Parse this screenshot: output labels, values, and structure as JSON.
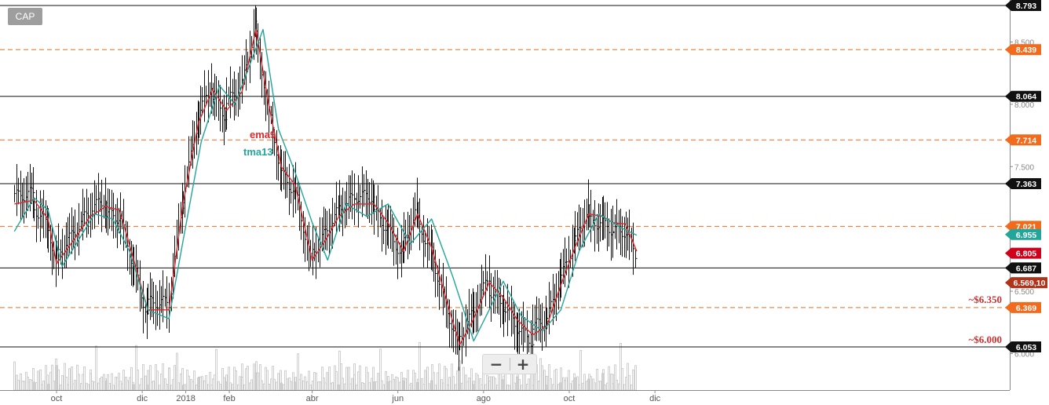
{
  "symbol": "CAP",
  "zoom": {
    "out_label": "−",
    "in_label": "+"
  },
  "colors": {
    "price": "#111111",
    "volume": "#c4c4c4",
    "ema": "#e3262b",
    "tma": "#22a69a",
    "support_line": "#111111",
    "dashed_line": "#f26b1d",
    "target_text": "#d32f2f"
  },
  "chart_data": {
    "type": "line",
    "title": "CAP",
    "ylim": [
      5.85,
      8.85
    ],
    "y_ticks": [
      "8.500",
      "8.000",
      "7.500",
      "6.500",
      "6.000"
    ],
    "x_ticks": [
      "oct",
      "dic",
      "2018",
      "feb",
      "abr",
      "jun",
      "ago",
      "oct",
      "dic"
    ],
    "series": [
      {
        "name": "ema9",
        "values": [
          [
            "2017-09-01",
            7.2
          ],
          [
            "2017-09-15",
            7.23
          ],
          [
            "2017-09-25",
            7.08
          ],
          [
            "2017-10-01",
            6.72
          ],
          [
            "2017-10-10",
            6.86
          ],
          [
            "2017-10-25",
            7.1
          ],
          [
            "2017-11-05",
            7.18
          ],
          [
            "2017-11-15",
            7.15
          ],
          [
            "2017-11-25",
            6.75
          ],
          [
            "2017-12-05",
            6.35
          ],
          [
            "2017-12-20",
            6.35
          ],
          [
            "2017-12-30",
            7.2
          ],
          [
            "2018-01-10",
            7.85
          ],
          [
            "2018-01-20",
            8.12
          ],
          [
            "2018-01-30",
            7.95
          ],
          [
            "2018-02-10",
            8.1
          ],
          [
            "2018-02-20",
            8.6
          ],
          [
            "2018-03-01",
            8.0
          ],
          [
            "2018-03-10",
            7.5
          ],
          [
            "2018-03-20",
            7.35
          ],
          [
            "2018-04-01",
            6.75
          ],
          [
            "2018-04-10",
            6.9
          ],
          [
            "2018-04-20",
            7.1
          ],
          [
            "2018-05-01",
            7.2
          ],
          [
            "2018-05-15",
            7.2
          ],
          [
            "2018-05-25",
            7.05
          ],
          [
            "2018-06-05",
            6.82
          ],
          [
            "2018-06-15",
            7.12
          ],
          [
            "2018-06-25",
            6.85
          ],
          [
            "2018-07-05",
            6.45
          ],
          [
            "2018-07-15",
            6.07
          ],
          [
            "2018-07-25",
            6.28
          ],
          [
            "2018-08-05",
            6.57
          ],
          [
            "2018-08-15",
            6.45
          ],
          [
            "2018-08-25",
            6.27
          ],
          [
            "2018-09-05",
            6.15
          ],
          [
            "2018-09-15",
            6.22
          ],
          [
            "2018-09-25",
            6.55
          ],
          [
            "2018-10-05",
            6.85
          ],
          [
            "2018-10-15",
            7.12
          ],
          [
            "2018-10-25",
            7.1
          ],
          [
            "2018-11-01",
            7.05
          ],
          [
            "2018-11-10",
            7.04
          ],
          [
            "2018-11-18",
            6.82
          ]
        ]
      },
      {
        "name": "tma13",
        "values": [
          [
            "2017-09-01",
            6.98
          ],
          [
            "2017-09-15",
            7.25
          ],
          [
            "2017-09-25",
            7.15
          ],
          [
            "2017-10-05",
            6.7
          ],
          [
            "2017-10-15",
            6.88
          ],
          [
            "2017-10-28",
            7.12
          ],
          [
            "2017-11-10",
            7.08
          ],
          [
            "2017-11-22",
            6.82
          ],
          [
            "2017-12-05",
            6.35
          ],
          [
            "2017-12-20",
            6.28
          ],
          [
            "2017-12-30",
            6.9
          ],
          [
            "2018-01-12",
            7.7
          ],
          [
            "2018-01-25",
            8.15
          ],
          [
            "2018-02-05",
            8.0
          ],
          [
            "2018-02-15",
            8.3
          ],
          [
            "2018-02-25",
            8.6
          ],
          [
            "2018-03-08",
            7.8
          ],
          [
            "2018-03-20",
            7.45
          ],
          [
            "2018-04-01",
            7.05
          ],
          [
            "2018-04-12",
            6.75
          ],
          [
            "2018-04-25",
            7.2
          ],
          [
            "2018-05-10",
            7.1
          ],
          [
            "2018-05-25",
            7.2
          ],
          [
            "2018-06-10",
            6.88
          ],
          [
            "2018-06-25",
            7.08
          ],
          [
            "2018-07-10",
            6.62
          ],
          [
            "2018-07-25",
            6.1
          ],
          [
            "2018-08-05",
            6.35
          ],
          [
            "2018-08-15",
            6.58
          ],
          [
            "2018-08-28",
            6.3
          ],
          [
            "2018-09-12",
            6.18
          ],
          [
            "2018-09-25",
            6.35
          ],
          [
            "2018-10-08",
            6.82
          ],
          [
            "2018-10-22",
            7.12
          ],
          [
            "2018-11-05",
            7.02
          ],
          [
            "2018-11-18",
            6.95
          ]
        ]
      }
    ],
    "series_labels": [
      "ema9",
      "tma13"
    ],
    "horizontal_levels": [
      {
        "label": "8.793",
        "value": 8.793,
        "style": "solid",
        "tag_color": "#111111"
      },
      {
        "label": "8.439",
        "value": 8.439,
        "style": "dashed",
        "tag_color": "#f26b1d"
      },
      {
        "label": "8.064",
        "value": 8.064,
        "style": "solid",
        "tag_color": "#111111"
      },
      {
        "label": "7.714",
        "value": 7.714,
        "style": "dashed",
        "tag_color": "#f26b1d"
      },
      {
        "label": "7.363",
        "value": 7.363,
        "style": "solid",
        "tag_color": "#111111"
      },
      {
        "label": "7.021",
        "value": 7.021,
        "style": "dashed",
        "tag_color": "#f26b1d"
      },
      {
        "label": "6.687",
        "value": 6.687,
        "style": "solid",
        "tag_color": "#111111"
      },
      {
        "label": "6.369",
        "value": 6.369,
        "style": "dashed",
        "tag_color": "#f26b1d"
      },
      {
        "label": "6.053",
        "value": 6.053,
        "style": "solid",
        "tag_color": "#111111"
      }
    ],
    "price_tags": [
      {
        "label": "6.955",
        "value": 6.955,
        "color": "#22a69a"
      },
      {
        "label": "6.805",
        "value": 6.805,
        "color": "#d0021b"
      },
      {
        "label": "6.569,10",
        "value": 6.569,
        "color": "#b0331a"
      }
    ],
    "annotations": [
      {
        "text": "~$6.350",
        "value": 6.38
      },
      {
        "text": "~$6.000",
        "value": 6.06
      }
    ]
  }
}
